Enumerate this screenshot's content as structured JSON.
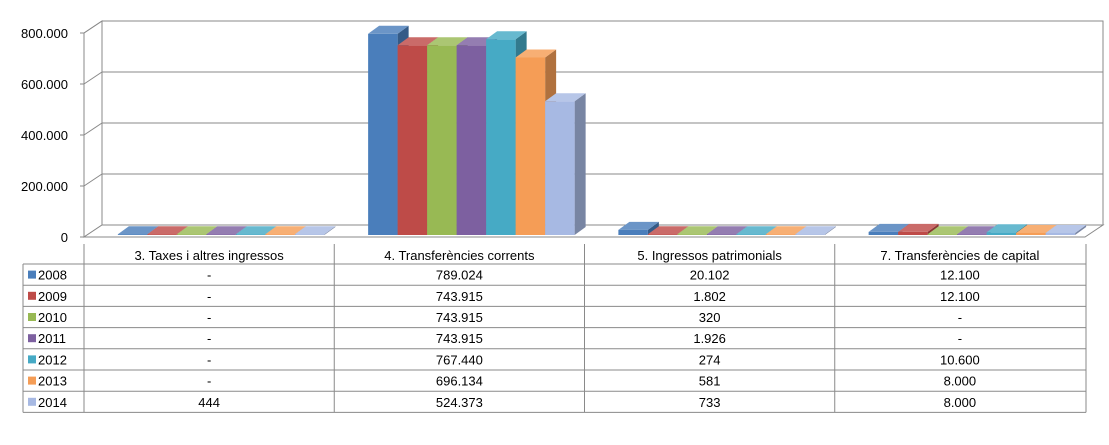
{
  "chart_data": {
    "type": "bar",
    "categories": [
      "3. Taxes i altres ingressos",
      "4. Transferències corrents",
      "5. Ingressos patrimonials",
      "7. Transferències de capital"
    ],
    "series": [
      {
        "name": "2008",
        "color": "#4A7EBB",
        "values": [
          0,
          789024,
          20102,
          12100
        ],
        "labels": [
          "-",
          "789.024",
          "20.102",
          "12.100"
        ]
      },
      {
        "name": "2009",
        "color": "#BE4B48",
        "values": [
          0,
          743915,
          1802,
          12100
        ],
        "labels": [
          "-",
          "743.915",
          "1.802",
          "12.100"
        ]
      },
      {
        "name": "2010",
        "color": "#98B954",
        "values": [
          0,
          743915,
          320,
          0
        ],
        "labels": [
          "-",
          "743.915",
          "320",
          "-"
        ]
      },
      {
        "name": "2011",
        "color": "#7D60A0",
        "values": [
          0,
          743915,
          1926,
          0
        ],
        "labels": [
          "-",
          "743.915",
          "1.926",
          "-"
        ]
      },
      {
        "name": "2012",
        "color": "#46AAC5",
        "values": [
          0,
          767440,
          274,
          10600
        ],
        "labels": [
          "-",
          "767.440",
          "274",
          "10.600"
        ]
      },
      {
        "name": "2013",
        "color": "#F59D56",
        "values": [
          0,
          696134,
          581,
          8000
        ],
        "labels": [
          "-",
          "696.134",
          "581",
          "8.000"
        ]
      },
      {
        "name": "2014",
        "color": "#A7B9E3",
        "values": [
          444,
          524373,
          733,
          8000
        ],
        "labels": [
          "444",
          "524.373",
          "733",
          "8.000"
        ]
      }
    ],
    "ylim": [
      0,
      800000
    ],
    "yticks": [
      0,
      200000,
      400000,
      600000,
      800000
    ],
    "ytick_labels": [
      "0",
      "200.000",
      "400.000",
      "600.000",
      "800.000"
    ],
    "grid": true,
    "legend": "data-table-left"
  }
}
